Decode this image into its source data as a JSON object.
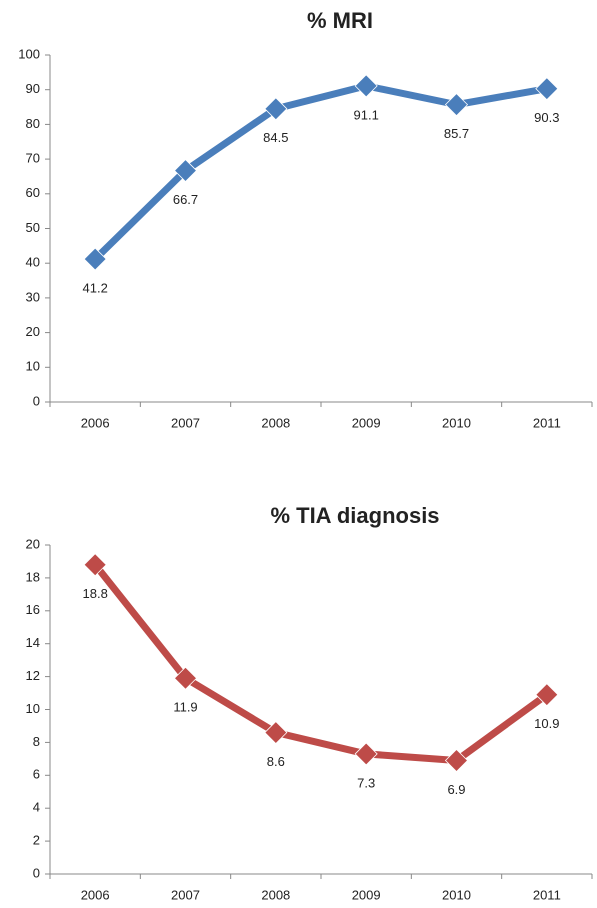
{
  "chart_data": [
    {
      "type": "line",
      "title": "% MRI",
      "categories": [
        "2006",
        "2007",
        "2008",
        "2009",
        "2010",
        "2011"
      ],
      "values": [
        41.2,
        66.7,
        84.5,
        91.1,
        85.7,
        90.3
      ],
      "color": "#4a7ebb",
      "ylim": [
        0,
        100
      ],
      "yticks": [
        0,
        10,
        20,
        30,
        40,
        50,
        60,
        70,
        80,
        90,
        100
      ]
    },
    {
      "type": "line",
      "title": "% TIA diagnosis",
      "categories": [
        "2006",
        "2007",
        "2008",
        "2009",
        "2010",
        "2011"
      ],
      "values": [
        18.8,
        11.9,
        8.6,
        7.3,
        6.9,
        10.9
      ],
      "color": "#be4b48",
      "ylim": [
        0,
        20
      ],
      "yticks": [
        0,
        2,
        4,
        6,
        8,
        10,
        12,
        14,
        16,
        18,
        20
      ]
    }
  ]
}
